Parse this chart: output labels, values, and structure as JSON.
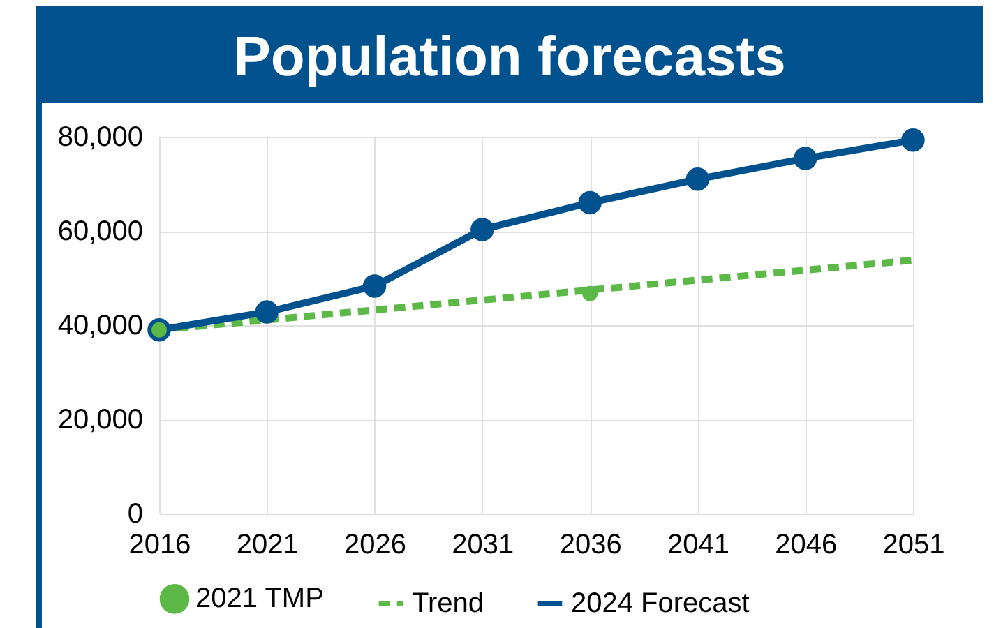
{
  "chart_data": {
    "type": "line",
    "title": "Population forecasts",
    "x": [
      2016,
      2021,
      2026,
      2031,
      2036,
      2041,
      2046,
      2051
    ],
    "series": [
      {
        "name": "2021 TMP",
        "type": "scatter",
        "color": "#5cb948",
        "marker": "circle",
        "x": [
          2016,
          2036
        ],
        "values": [
          39000,
          46700
        ]
      },
      {
        "name": "Trend",
        "color": "#5cb948",
        "line_style": "dashed",
        "marker": "none",
        "x": [
          2016,
          2051
        ],
        "values": [
          39000,
          53800
        ]
      },
      {
        "name": "2024 Forecast",
        "color": "#00528f",
        "line_style": "solid",
        "marker": "circle",
        "values": [
          39000,
          42800,
          48300,
          60300,
          66000,
          71000,
          75400,
          79300
        ]
      }
    ],
    "xlim": [
      2016,
      2051
    ],
    "xticks": [
      2016,
      2021,
      2026,
      2031,
      2036,
      2041,
      2046,
      2051
    ],
    "ylim": [
      0,
      80000
    ],
    "yticks": [
      0,
      {
        "value": 20000,
        "label": "20,000"
      },
      {
        "value": 40000,
        "label": "40,000"
      },
      {
        "value": 60000,
        "label": "60,000"
      },
      {
        "value": 80000,
        "label": "80,000"
      }
    ],
    "grid": true,
    "legend": "bottom"
  }
}
